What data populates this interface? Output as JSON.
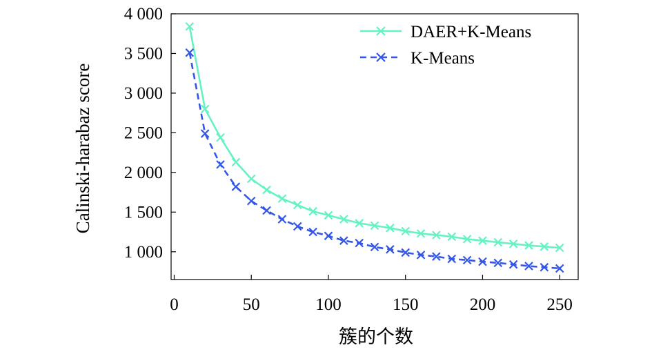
{
  "chart_data": {
    "type": "line",
    "title": "",
    "xlabel": "簇的个数",
    "ylabel": "Calinski-harabaz score",
    "xlim": [
      -2,
      262
    ],
    "ylim": [
      650,
      4000
    ],
    "xticks": [
      0,
      50,
      100,
      150,
      200,
      250
    ],
    "xtick_labels": [
      "0",
      "50",
      "100",
      "150",
      "200",
      "250"
    ],
    "yticks": [
      1000,
      1500,
      2000,
      2500,
      3000,
      3500,
      4000
    ],
    "ytick_labels": [
      "1 000",
      "1 500",
      "2 000",
      "2 500",
      "3 000",
      "3 500",
      "4 000"
    ],
    "grid": false,
    "legend_position": "top-right",
    "x": [
      10,
      20,
      30,
      40,
      50,
      60,
      70,
      80,
      90,
      100,
      110,
      120,
      130,
      140,
      150,
      160,
      170,
      180,
      190,
      200,
      210,
      220,
      230,
      240,
      250
    ],
    "series": [
      {
        "name": "DAER+K-Means",
        "color": "#66F2C2",
        "line_style": "solid",
        "marker": "x",
        "values": [
          3840,
          2800,
          2440,
          2130,
          1920,
          1780,
          1670,
          1590,
          1510,
          1460,
          1410,
          1360,
          1330,
          1300,
          1260,
          1230,
          1210,
          1190,
          1160,
          1140,
          1120,
          1100,
          1080,
          1065,
          1050
        ]
      },
      {
        "name": "K-Means",
        "color": "#3356E8",
        "line_style": "dashed",
        "marker": "x",
        "values": [
          3510,
          2490,
          2100,
          1820,
          1640,
          1520,
          1410,
          1320,
          1250,
          1200,
          1140,
          1110,
          1060,
          1030,
          990,
          960,
          940,
          910,
          895,
          875,
          860,
          840,
          820,
          805,
          790
        ]
      }
    ]
  }
}
